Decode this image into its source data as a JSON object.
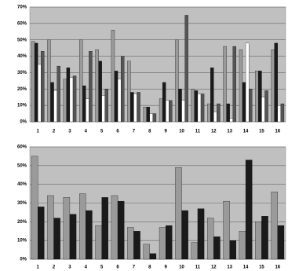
{
  "chart_data": [
    {
      "type": "bar",
      "categories": [
        "1",
        "2",
        "3",
        "4",
        "5",
        "6",
        "7",
        "8",
        "9",
        "10",
        "11",
        "12",
        "13",
        "14",
        "15",
        "16"
      ],
      "series": [
        {
          "color": "#9a9a9a",
          "values": [
            49,
            50,
            26,
            50,
            44,
            56,
            37,
            9,
            14,
            50,
            20,
            11,
            46,
            44,
            31,
            44
          ]
        },
        {
          "color": "#1a1a1a",
          "values": [
            48,
            24,
            33,
            22,
            37,
            31,
            18,
            9,
            24,
            20,
            19,
            33,
            11,
            24,
            31,
            48
          ]
        },
        {
          "color": "#ffffff",
          "values": [
            35,
            19,
            27,
            14,
            16,
            26,
            17,
            5,
            13,
            13,
            17,
            6,
            2,
            48,
            15,
            10
          ]
        },
        {
          "color": "#555555",
          "values": [
            43,
            34,
            28,
            43,
            20,
            40,
            18,
            5,
            13,
            65,
            17,
            11,
            46,
            20,
            19,
            11
          ]
        }
      ],
      "ylim": [
        0,
        70
      ],
      "yticks": [
        {
          "value": 0,
          "label": "0%"
        },
        {
          "value": 10,
          "label": "10%"
        },
        {
          "value": 20,
          "label": "20%"
        },
        {
          "value": 30,
          "label": "30%"
        },
        {
          "value": 40,
          "label": "40%"
        },
        {
          "value": 50,
          "label": "50%"
        },
        {
          "value": 60,
          "label": "60%"
        },
        {
          "value": 70,
          "label": "70%"
        }
      ],
      "grid": true,
      "background": "#c0c0c0"
    },
    {
      "type": "bar",
      "categories": [
        "1",
        "2",
        "3",
        "4",
        "5",
        "6",
        "7",
        "8",
        "9",
        "10",
        "11",
        "12",
        "13",
        "14",
        "15",
        "16"
      ],
      "series": [
        {
          "color": "#9a9a9a",
          "values": [
            55,
            34,
            33,
            35,
            18,
            34,
            17,
            8,
            17,
            49,
            9,
            22,
            31,
            15,
            20,
            36
          ]
        },
        {
          "color": "#1a1a1a",
          "values": [
            28,
            22,
            24,
            26,
            33,
            31,
            15,
            3,
            18,
            26,
            27,
            12,
            10,
            53,
            23,
            18
          ]
        }
      ],
      "ylim": [
        0,
        60
      ],
      "yticks": [
        {
          "value": 0,
          "label": "0%"
        },
        {
          "value": 10,
          "label": "10%"
        },
        {
          "value": 20,
          "label": "20%"
        },
        {
          "value": 30,
          "label": "30%"
        },
        {
          "value": 40,
          "label": "40%"
        },
        {
          "value": 50,
          "label": "50%"
        },
        {
          "value": 60,
          "label": "60%"
        }
      ],
      "grid": true,
      "background": "#c0c0c0"
    }
  ]
}
